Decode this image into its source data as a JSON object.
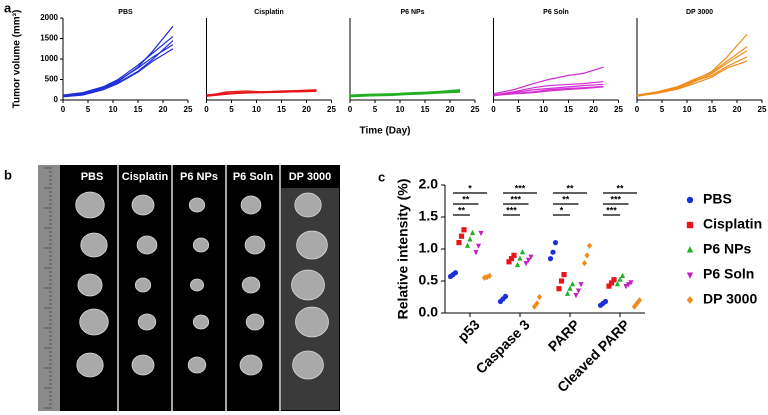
{
  "panel_labels": [
    "a",
    "b",
    "c"
  ],
  "shared_axes": {
    "ylabel": "Tumor volume (mm³)",
    "xlabel": "Time (Day)"
  },
  "photo": {
    "columns": [
      "PBS",
      "Cisplatin",
      "P6 NPs",
      "P6 Soln",
      "DP 3000"
    ]
  },
  "chart_data": [
    {
      "type": "line",
      "title": "PBS",
      "color": "#1f2fd8",
      "x": [
        0,
        4,
        8,
        11,
        15,
        18,
        22
      ],
      "series": [
        {
          "values": [
            100,
            150,
            300,
            450,
            800,
            1200,
            1800
          ]
        },
        {
          "values": [
            120,
            180,
            320,
            500,
            850,
            1150,
            1550
          ]
        },
        {
          "values": [
            90,
            130,
            280,
            420,
            700,
            1000,
            1450
          ]
        },
        {
          "values": [
            110,
            160,
            300,
            470,
            780,
            1050,
            1350
          ]
        },
        {
          "values": [
            80,
            120,
            250,
            400,
            680,
            950,
            1250
          ]
        }
      ],
      "xlim": [
        0,
        25
      ],
      "xticks": [
        0,
        5,
        10,
        15,
        20,
        25
      ],
      "ylim": [
        0,
        2000
      ],
      "yticks": [
        0,
        500,
        1000,
        1500,
        2000
      ]
    },
    {
      "type": "line",
      "title": "Cisplatin",
      "color": "#e8151b",
      "x": [
        0,
        4,
        8,
        11,
        15,
        18,
        22
      ],
      "series": [
        {
          "values": [
            120,
            160,
            180,
            190,
            200,
            210,
            230
          ]
        },
        {
          "values": [
            100,
            200,
            220,
            200,
            210,
            220,
            240
          ]
        },
        {
          "values": [
            130,
            150,
            170,
            180,
            190,
            200,
            210
          ]
        },
        {
          "values": [
            90,
            140,
            180,
            200,
            220,
            230,
            250
          ]
        },
        {
          "values": [
            110,
            170,
            190,
            180,
            190,
            200,
            220
          ]
        }
      ],
      "xlim": [
        0,
        25
      ],
      "xticks": [
        0,
        5,
        10,
        15,
        20,
        25
      ],
      "ylim": [
        0,
        2000
      ]
    },
    {
      "type": "line",
      "title": "P6 NPs",
      "color": "#22b022",
      "x": [
        0,
        4,
        8,
        11,
        15,
        18,
        22
      ],
      "series": [
        {
          "values": [
            100,
            120,
            130,
            150,
            170,
            190,
            210
          ]
        },
        {
          "values": [
            120,
            140,
            150,
            160,
            180,
            200,
            230
          ]
        },
        {
          "values": [
            90,
            110,
            120,
            140,
            160,
            180,
            200
          ]
        },
        {
          "values": [
            110,
            130,
            140,
            170,
            190,
            210,
            250
          ]
        },
        {
          "values": [
            80,
            100,
            110,
            130,
            150,
            170,
            190
          ]
        }
      ],
      "xlim": [
        0,
        25
      ],
      "xticks": [
        0,
        5,
        10,
        15,
        20,
        25
      ],
      "ylim": [
        0,
        2000
      ]
    },
    {
      "type": "line",
      "title": "P6 Soln",
      "color": "#d22fd2",
      "x": [
        0,
        4,
        8,
        11,
        15,
        18,
        22
      ],
      "series": [
        {
          "values": [
            150,
            250,
            400,
            500,
            600,
            650,
            800
          ]
        },
        {
          "values": [
            120,
            200,
            300,
            350,
            380,
            400,
            450
          ]
        },
        {
          "values": [
            100,
            180,
            250,
            280,
            320,
            350,
            380
          ]
        },
        {
          "values": [
            130,
            160,
            200,
            250,
            280,
            300,
            330
          ]
        },
        {
          "values": [
            110,
            150,
            180,
            220,
            260,
            280,
            320
          ]
        }
      ],
      "xlim": [
        0,
        25
      ],
      "xticks": [
        0,
        5,
        10,
        15,
        20,
        25
      ],
      "ylim": [
        0,
        2000
      ]
    },
    {
      "type": "line",
      "title": "DP 3000",
      "color": "#f08c1b",
      "x": [
        0,
        4,
        8,
        11,
        15,
        18,
        22
      ],
      "series": [
        {
          "values": [
            100,
            180,
            300,
            450,
            700,
            1050,
            1600
          ]
        },
        {
          "values": [
            120,
            200,
            320,
            480,
            680,
            950,
            1300
          ]
        },
        {
          "values": [
            90,
            170,
            280,
            420,
            650,
            900,
            1200
          ]
        },
        {
          "values": [
            110,
            190,
            300,
            440,
            600,
            820,
            1050
          ]
        },
        {
          "values": [
            100,
            160,
            260,
            380,
            560,
            780,
            950
          ]
        }
      ],
      "xlim": [
        0,
        25
      ],
      "xticks": [
        0,
        5,
        10,
        15,
        20,
        25
      ],
      "ylim": [
        0,
        2000
      ]
    },
    {
      "type": "dot",
      "ylabel": "Relative intensity (%)",
      "categories": [
        "p53",
        "Caspase 3",
        "PARP",
        "Cleaved PARP"
      ],
      "series": [
        {
          "name": "PBS",
          "color": "#1f2fd8",
          "marker": "circle",
          "values": [
            [
              0.57,
              0.6,
              0.63
            ],
            [
              0.18,
              0.22,
              0.26
            ],
            [
              0.85,
              0.95,
              1.1
            ],
            [
              0.12,
              0.15,
              0.18
            ]
          ]
        },
        {
          "name": "Cisplatin",
          "color": "#e8151b",
          "marker": "square",
          "values": [
            [
              1.1,
              1.2,
              1.3
            ],
            [
              0.8,
              0.85,
              0.9
            ],
            [
              0.38,
              0.5,
              0.6
            ],
            [
              0.42,
              0.47,
              0.52
            ]
          ]
        },
        {
          "name": "P6 NPs",
          "color": "#22b022",
          "marker": "triangle-up",
          "values": [
            [
              1.05,
              1.15,
              1.25
            ],
            [
              0.75,
              0.85,
              0.95
            ],
            [
              0.3,
              0.38,
              0.45
            ],
            [
              0.45,
              0.52,
              0.58
            ]
          ]
        },
        {
          "name": "P6 Soln",
          "color": "#c41fc4",
          "marker": "triangle-down",
          "values": [
            [
              0.95,
              1.05,
              1.25
            ],
            [
              0.78,
              0.83,
              0.88
            ],
            [
              0.28,
              0.35,
              0.45
            ],
            [
              0.42,
              0.45,
              0.48
            ]
          ]
        },
        {
          "name": "DP 3000",
          "color": "#f08c1b",
          "marker": "diamond",
          "values": [
            [
              0.55,
              0.56,
              0.58
            ],
            [
              0.1,
              0.15,
              0.25
            ],
            [
              0.78,
              0.9,
              1.05
            ],
            [
              0.1,
              0.15,
              0.2
            ]
          ]
        }
      ],
      "significance": [
        [
          "*",
          "**",
          "**"
        ],
        [
          "***",
          "***",
          "***"
        ],
        [
          "**",
          "**",
          "*"
        ],
        [
          "**",
          "***",
          "***"
        ]
      ],
      "ylim": [
        0,
        2
      ],
      "yticks": [
        {
          "value": 0,
          "label": "0.0"
        },
        0.5,
        {
          "value": 1,
          "label": "1.0"
        },
        1.5,
        {
          "value": 2,
          "label": "2.0"
        }
      ]
    }
  ]
}
